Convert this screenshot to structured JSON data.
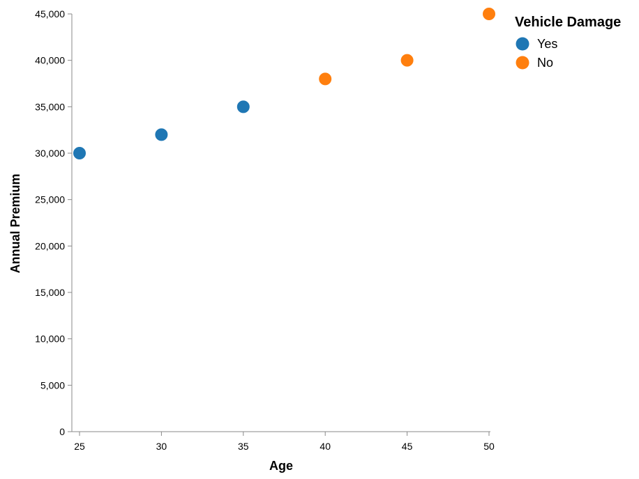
{
  "chart_data": {
    "type": "scatter",
    "xlabel": "Age",
    "ylabel": "Annual Premium",
    "xlim": [
      25,
      50
    ],
    "ylim": [
      0,
      45000
    ],
    "x_ticks": [
      25,
      30,
      35,
      40,
      45,
      50
    ],
    "x_tick_labels": [
      "25",
      "30",
      "35",
      "40",
      "45",
      "50"
    ],
    "y_ticks": [
      0,
      5000,
      10000,
      15000,
      20000,
      25000,
      30000,
      35000,
      40000,
      45000
    ],
    "y_tick_labels": [
      "0",
      "5,000",
      "10,000",
      "15,000",
      "20,000",
      "25,000",
      "30,000",
      "35,000",
      "40,000",
      "45,000"
    ],
    "grid": false,
    "legend": {
      "title": "Vehicle Damage",
      "placement": "top-right"
    },
    "series": [
      {
        "name": "Yes",
        "color": "#1f77b4",
        "points": [
          {
            "x": 25,
            "y": 30000
          },
          {
            "x": 30,
            "y": 32000
          },
          {
            "x": 35,
            "y": 35000
          }
        ]
      },
      {
        "name": "No",
        "color": "#ff7f0e",
        "points": [
          {
            "x": 40,
            "y": 38000
          },
          {
            "x": 45,
            "y": 40000
          },
          {
            "x": 50,
            "y": 45000
          }
        ]
      }
    ]
  }
}
